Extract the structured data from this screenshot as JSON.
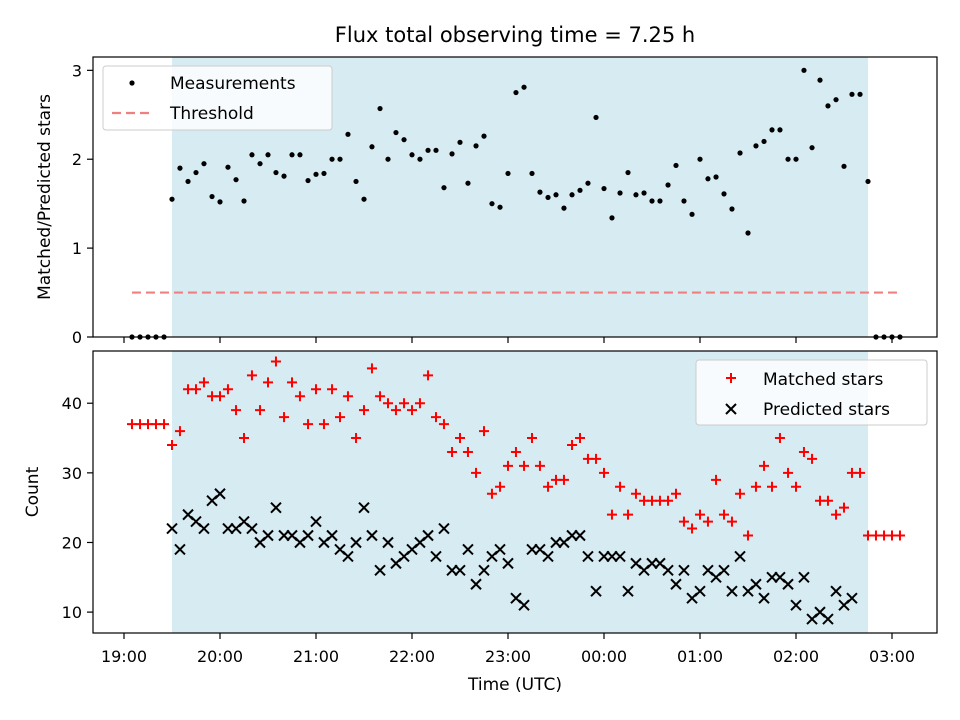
{
  "title": "Flux total observing time = 7.25 h",
  "xlabel": "Time (UTC)",
  "colors": {
    "shade": "#add8e6",
    "measure": "#000000",
    "threshold": "#f08080",
    "matched": "#ff0000",
    "predicted": "#000000"
  },
  "x_ticks": [
    "19:00",
    "20:00",
    "21:00",
    "22:00",
    "23:00",
    "00:00",
    "01:00",
    "02:00",
    "03:00"
  ],
  "chart_data": [
    {
      "type": "scatter",
      "ylabel": "Matched/Predicted stars",
      "ylim": [
        0,
        3.15
      ],
      "yticks": [
        0,
        1,
        2,
        3
      ],
      "shaded_span_hours": [
        19.5,
        26.75
      ],
      "legend": {
        "placement": "upper-left",
        "entries": [
          "Measurements",
          "Threshold"
        ]
      },
      "threshold": {
        "value": 0.5,
        "x_range": [
          19.083,
          27.083
        ]
      },
      "x": [
        19.083,
        19.167,
        19.25,
        19.333,
        19.417,
        19.5,
        19.583,
        19.667,
        19.75,
        19.833,
        19.917,
        20.0,
        20.083,
        20.167,
        20.25,
        20.333,
        20.417,
        20.5,
        20.583,
        20.667,
        20.75,
        20.833,
        20.917,
        21.0,
        21.083,
        21.167,
        21.25,
        21.333,
        21.417,
        21.5,
        21.583,
        21.667,
        21.75,
        21.833,
        21.917,
        22.0,
        22.083,
        22.167,
        22.25,
        22.333,
        22.417,
        22.5,
        22.583,
        22.667,
        22.75,
        22.833,
        22.917,
        23.0,
        23.083,
        23.167,
        23.25,
        23.333,
        23.417,
        23.5,
        23.583,
        23.667,
        23.75,
        23.833,
        23.917,
        24.0,
        24.083,
        24.167,
        24.25,
        24.333,
        24.417,
        24.5,
        24.583,
        24.667,
        24.75,
        24.833,
        24.917,
        25.0,
        25.083,
        25.167,
        25.25,
        25.333,
        25.417,
        25.5,
        25.583,
        25.667,
        25.75,
        25.833,
        25.917,
        26.0,
        26.083,
        26.167,
        26.25,
        26.333,
        26.417,
        26.5,
        26.583,
        26.667,
        26.75,
        26.833,
        26.917,
        27.0,
        27.083
      ],
      "series": [
        {
          "name": "Measurements",
          "values": [
            0,
            0,
            0,
            0,
            0,
            1.55,
            1.9,
            1.75,
            1.85,
            1.95,
            1.58,
            1.52,
            1.91,
            1.77,
            1.53,
            2.05,
            1.95,
            2.05,
            1.85,
            1.81,
            2.05,
            2.05,
            1.76,
            1.83,
            1.84,
            2.0,
            2.0,
            2.28,
            1.75,
            1.55,
            2.14,
            2.57,
            2.0,
            2.3,
            2.22,
            2.05,
            2.0,
            2.1,
            2.1,
            1.68,
            2.06,
            2.19,
            1.73,
            2.15,
            2.26,
            1.5,
            1.46,
            1.84,
            2.75,
            2.81,
            1.84,
            1.63,
            1.57,
            1.6,
            1.45,
            1.6,
            1.65,
            1.73,
            2.47,
            1.67,
            1.34,
            1.62,
            1.85,
            1.6,
            1.62,
            1.53,
            1.53,
            1.71,
            1.93,
            1.53,
            1.38,
            2.0,
            1.78,
            1.8,
            1.61,
            1.44,
            2.07,
            1.17,
            2.15,
            2.2,
            2.33,
            2.33,
            2.0,
            2.0,
            3.0,
            2.13,
            2.89,
            2.6,
            2.67,
            1.92,
            2.73,
            2.73,
            1.75,
            0,
            0,
            0,
            0
          ]
        }
      ]
    },
    {
      "type": "scatter",
      "ylabel": "Count",
      "ylim": [
        7,
        47.5
      ],
      "yticks": [
        10,
        20,
        30,
        40
      ],
      "shaded_span_hours": [
        19.5,
        26.75
      ],
      "legend": {
        "placement": "upper-right",
        "entries": [
          "Matched stars",
          "Predicted stars"
        ]
      },
      "x": [
        19.083,
        19.167,
        19.25,
        19.333,
        19.417,
        19.5,
        19.583,
        19.667,
        19.75,
        19.833,
        19.917,
        20.0,
        20.083,
        20.167,
        20.25,
        20.333,
        20.417,
        20.5,
        20.583,
        20.667,
        20.75,
        20.833,
        20.917,
        21.0,
        21.083,
        21.167,
        21.25,
        21.333,
        21.417,
        21.5,
        21.583,
        21.667,
        21.75,
        21.833,
        21.917,
        22.0,
        22.083,
        22.167,
        22.25,
        22.333,
        22.417,
        22.5,
        22.583,
        22.667,
        22.75,
        22.833,
        22.917,
        23.0,
        23.083,
        23.167,
        23.25,
        23.333,
        23.417,
        23.5,
        23.583,
        23.667,
        23.75,
        23.833,
        23.917,
        24.0,
        24.083,
        24.167,
        24.25,
        24.333,
        24.417,
        24.5,
        24.583,
        24.667,
        24.75,
        24.833,
        24.917,
        25.0,
        25.083,
        25.167,
        25.25,
        25.333,
        25.417,
        25.5,
        25.583,
        25.667,
        25.75,
        25.833,
        25.917,
        26.0,
        26.083,
        26.167,
        26.25,
        26.333,
        26.417,
        26.5,
        26.583,
        26.667,
        26.75,
        26.833,
        26.917,
        27.0,
        27.083
      ],
      "series": [
        {
          "name": "Matched stars",
          "values": [
            37,
            37,
            37,
            37,
            37,
            34,
            36,
            42,
            42,
            43,
            41,
            41,
            42,
            39,
            35,
            44,
            39,
            43,
            46,
            38,
            43,
            41,
            37,
            42,
            37,
            42,
            38,
            41,
            35,
            39,
            45,
            41,
            40,
            39,
            40,
            39,
            40,
            44,
            38,
            37,
            33,
            35,
            33,
            30,
            36,
            27,
            28,
            31,
            33,
            31,
            35,
            31,
            28,
            29,
            29,
            34,
            35,
            32,
            32,
            30,
            24,
            28,
            24,
            27,
            26,
            26,
            26,
            26,
            27,
            23,
            22,
            24,
            23,
            29,
            24,
            23,
            27,
            21,
            28,
            31,
            28,
            35,
            30,
            28,
            33,
            32,
            26,
            26,
            24,
            25,
            30,
            30,
            21,
            21,
            21,
            21,
            21
          ]
        },
        {
          "name": "Predicted stars",
          "values": [
            null,
            null,
            null,
            null,
            null,
            22,
            19,
            24,
            23,
            22,
            26,
            27,
            22,
            22,
            23,
            22,
            20,
            21,
            25,
            21,
            21,
            20,
            21,
            23,
            20,
            21,
            19,
            18,
            20,
            25,
            21,
            16,
            20,
            17,
            18,
            19,
            20,
            21,
            18,
            22,
            16,
            16,
            19,
            14,
            16,
            18,
            19,
            17,
            12,
            11,
            19,
            19,
            18,
            20,
            20,
            21,
            21,
            18,
            13,
            18,
            18,
            18,
            13,
            17,
            16,
            17,
            17,
            16,
            14,
            16,
            12,
            13,
            16,
            15,
            16,
            13,
            18,
            13,
            14,
            12,
            15,
            15,
            14,
            11,
            15,
            9,
            10,
            9,
            13,
            11,
            12,
            null,
            null,
            null,
            null,
            null,
            null
          ]
        }
      ]
    }
  ]
}
